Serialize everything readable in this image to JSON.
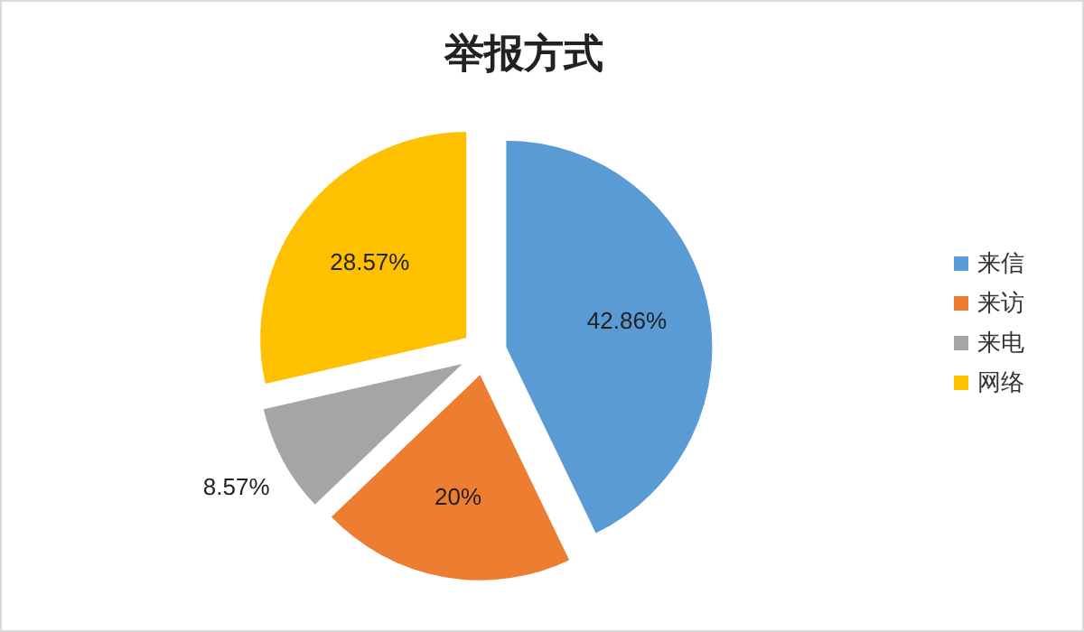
{
  "chart_data": {
    "type": "pie",
    "title": "举报方式",
    "categories": [
      "来信",
      "来访",
      "来电",
      "网络"
    ],
    "values": [
      42.86,
      20,
      8.57,
      28.57
    ],
    "colors": [
      "#5b9bd5",
      "#ed7d31",
      "#a5a5a5",
      "#ffc000"
    ],
    "value_labels": [
      "42.86%",
      "20%",
      "8.57%",
      "28.57%"
    ],
    "legend": "right"
  }
}
